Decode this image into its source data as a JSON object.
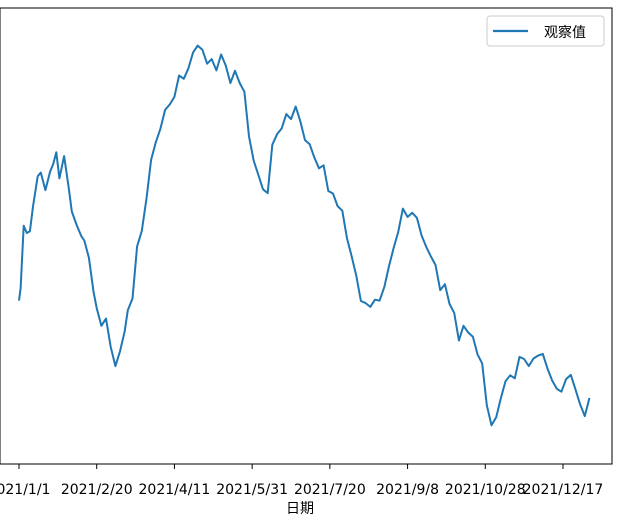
{
  "chart_data": {
    "type": "line",
    "xlabel": "日期",
    "ylabel": "",
    "title": "",
    "grid": false,
    "legend_position": "upper right",
    "x_tick_labels": [
      "2021/1/1",
      "2021/2/20",
      "2021/4/11",
      "2021/5/31",
      "2021/7/20",
      "2021/9/8",
      "2021/10/28",
      "2021/12/17"
    ],
    "x_range": [
      "2020-12-31",
      "2022-01-15"
    ],
    "y_range": [
      0,
      100
    ],
    "series": [
      {
        "name": "观察值",
        "color": "#1f77b4",
        "x": [
          "2021-01-01",
          "2021-01-02",
          "2021-01-04",
          "2021-01-06",
          "2021-01-08",
          "2021-01-10",
          "2021-01-13",
          "2021-01-15",
          "2021-01-18",
          "2021-01-21",
          "2021-01-23",
          "2021-01-25",
          "2021-01-27",
          "2021-01-30",
          "2021-02-02",
          "2021-02-04",
          "2021-02-07",
          "2021-02-10",
          "2021-02-12",
          "2021-02-15",
          "2021-02-18",
          "2021-02-20",
          "2021-02-23",
          "2021-02-26",
          "2021-03-01",
          "2021-03-04",
          "2021-03-07",
          "2021-03-10",
          "2021-03-12",
          "2021-03-15",
          "2021-03-18",
          "2021-03-21",
          "2021-03-24",
          "2021-03-27",
          "2021-03-30",
          "2021-04-02",
          "2021-04-05",
          "2021-04-08",
          "2021-04-11",
          "2021-04-14",
          "2021-04-17",
          "2021-04-20",
          "2021-04-23",
          "2021-04-26",
          "2021-04-29",
          "2021-05-02",
          "2021-05-05",
          "2021-05-08",
          "2021-05-11",
          "2021-05-14",
          "2021-05-17",
          "2021-05-20",
          "2021-05-23",
          "2021-05-26",
          "2021-05-29",
          "2021-06-01",
          "2021-06-04",
          "2021-06-07",
          "2021-06-10",
          "2021-06-13",
          "2021-06-16",
          "2021-06-19",
          "2021-06-22",
          "2021-06-25",
          "2021-06-28",
          "2021-07-01",
          "2021-07-04",
          "2021-07-07",
          "2021-07-10",
          "2021-07-13",
          "2021-07-16",
          "2021-07-19",
          "2021-07-22",
          "2021-07-25",
          "2021-07-28",
          "2021-07-31",
          "2021-08-03",
          "2021-08-06",
          "2021-08-09",
          "2021-08-12",
          "2021-08-15",
          "2021-08-18",
          "2021-08-21",
          "2021-08-24",
          "2021-08-27",
          "2021-08-30",
          "2021-09-02",
          "2021-09-05",
          "2021-09-08",
          "2021-09-11",
          "2021-09-14",
          "2021-09-17",
          "2021-09-20",
          "2021-09-23",
          "2021-09-26",
          "2021-09-29",
          "2021-10-02",
          "2021-10-05",
          "2021-10-08",
          "2021-10-11",
          "2021-10-14",
          "2021-10-17",
          "2021-10-20",
          "2021-10-23",
          "2021-10-26",
          "2021-10-29",
          "2021-11-01",
          "2021-11-04",
          "2021-11-07",
          "2021-11-10",
          "2021-11-13",
          "2021-11-16",
          "2021-11-19",
          "2021-11-22",
          "2021-11-25",
          "2021-11-28",
          "2021-12-01",
          "2021-12-04",
          "2021-12-07",
          "2021-12-10",
          "2021-12-13",
          "2021-12-16",
          "2021-12-19",
          "2021-12-22",
          "2021-12-25",
          "2021-12-28",
          "2021-12-31",
          "2022-01-03"
        ],
        "values": [
          35.1,
          38.0,
          52.9,
          51.2,
          51.6,
          57.5,
          64.7,
          65.6,
          61.4,
          65.8,
          67.6,
          70.4,
          64.2,
          69.5,
          62.0,
          56.3,
          53.2,
          50.5,
          49.4,
          45.3,
          37.1,
          33.3,
          29.1,
          30.8,
          24.1,
          19.5,
          23.0,
          27.8,
          32.8,
          35.6,
          48.0,
          51.7,
          59.4,
          68.6,
          72.8,
          76.0,
          80.5,
          81.8,
          83.6,
          88.7,
          87.9,
          90.4,
          94.2,
          95.8,
          94.8,
          91.5,
          92.6,
          89.9,
          93.7,
          91.1,
          86.9,
          89.8,
          86.9,
          84.8,
          74.2,
          68.4,
          65.0,
          61.6,
          60.7,
          72.2,
          74.7,
          76.1,
          79.5,
          78.3,
          81.3,
          77.8,
          73.3,
          72.3,
          69.2,
          66.6,
          67.3,
          61.2,
          60.6,
          57.6,
          56.5,
          49.9,
          45.7,
          41.0,
          35.0,
          34.5,
          33.6,
          35.3,
          35.1,
          38.3,
          43.2,
          47.6,
          51.4,
          57.0,
          55.0,
          56.0,
          54.8,
          50.6,
          47.9,
          45.6,
          43.6,
          37.6,
          39.0,
          34.3,
          32.2,
          25.6,
          29.1,
          27.5,
          26.5,
          22.3,
          20.1,
          10.2,
          5.4,
          7.3,
          11.8,
          15.9,
          17.3,
          16.6,
          21.7,
          21.2,
          19.5,
          21.3,
          22.0,
          22.4,
          18.9,
          16.1,
          14.1,
          13.4,
          16.4,
          17.4,
          14.0,
          10.4,
          7.6,
          11.9
        ]
      }
    ]
  }
}
